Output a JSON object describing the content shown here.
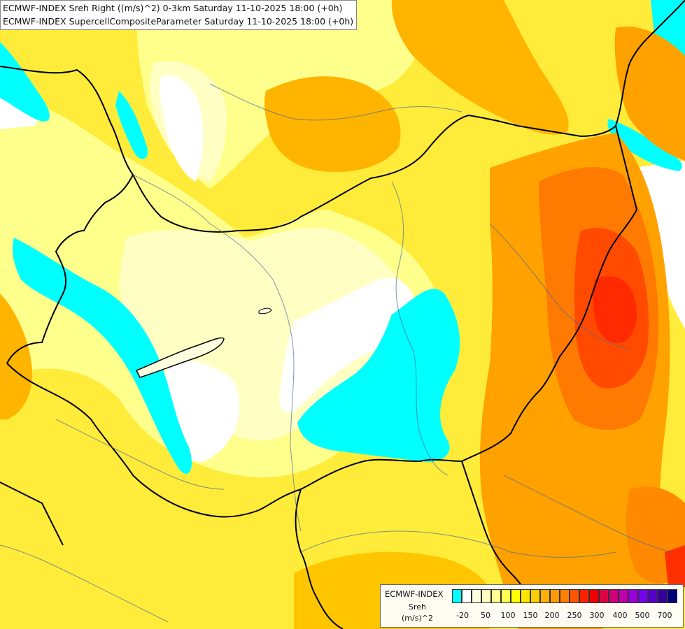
{
  "title": {
    "line1": "ECMWF-INDEX Sreh Right ((m/s)^2) 0-3km Saturday 11-10-2025 18:00 (+0h)",
    "line2": "ECMWF-INDEX SupercellCompositeParameter Saturday 11-10-2025 18:00 (+0h)"
  },
  "legend": {
    "model": "ECMWF-INDEX",
    "variable": "Sreh",
    "unit": "(m/s)^2",
    "colors": [
      "#00ffff",
      "#ffffff",
      "#ffffe0",
      "#ffffc0",
      "#ffff90",
      "#ffff50",
      "#ffff00",
      "#ffe600",
      "#ffcc00",
      "#ffb000",
      "#ff9900",
      "#ff7f00",
      "#ff5500",
      "#ff2200",
      "#ee0000",
      "#dd0044",
      "#cc0077",
      "#bb00aa",
      "#9900dd",
      "#7700ee",
      "#5500cc",
      "#330099",
      "#000077"
    ],
    "ticks": [
      "-20",
      "50",
      "100",
      "150",
      "200",
      "250",
      "300",
      "400",
      "500",
      "700"
    ]
  },
  "palette": {
    "cyan": "#00ffff",
    "white": "#ffffff",
    "pale_yellow": "#ffffc0",
    "light_yellow": "#ffff90",
    "yellow": "#ffff00",
    "gold": "#ffd700",
    "orange": "#ffa500",
    "dark_orange": "#ff7f00",
    "red_orange": "#ff4500",
    "red": "#ff2200"
  }
}
